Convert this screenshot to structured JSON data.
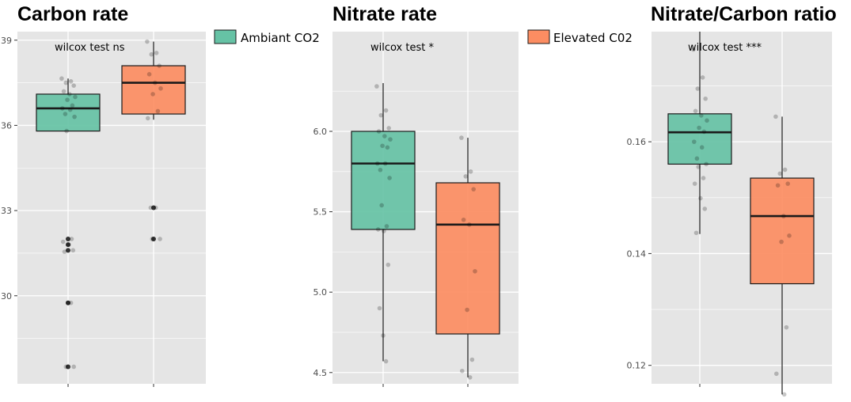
{
  "colors": {
    "ambient": "#66c2a5",
    "elevated": "#fc8d62",
    "panel_bg": "#e5e5e5",
    "grid": "#ffffff",
    "points": "#000000"
  },
  "legend": [
    {
      "label": "Ambiant CO2",
      "color": "#66c2a5"
    },
    {
      "label": "Elevated C02",
      "color": "#fc8d62"
    }
  ],
  "chart_data": [
    {
      "type": "box",
      "title": "Carbon rate",
      "annotation": "wilcox test ns",
      "ylim": [
        26.9,
        39.3
      ],
      "yticks": [
        30,
        33,
        36,
        39
      ],
      "ytick_labels": [
        "30",
        "33",
        "36",
        "39"
      ],
      "series": [
        {
          "name": "Ambiant CO2",
          "q1": 35.8,
          "median": 36.6,
          "q3": 37.1,
          "whisker_low": 35.8,
          "whisker_high": 37.65,
          "outliers": [
            32.0,
            31.8,
            31.6,
            29.75,
            27.5
          ],
          "points": [
            37.65,
            37.55,
            37.5,
            37.4,
            37.2,
            37.1,
            37.0,
            36.9,
            36.7,
            36.6,
            36.55,
            36.4,
            36.3,
            35.8,
            32.0,
            31.9,
            31.8,
            31.6,
            31.55,
            29.75,
            29.75,
            27.5,
            27.5
          ]
        },
        {
          "name": "Elevated C02",
          "q1": 36.4,
          "median": 37.5,
          "q3": 38.1,
          "whisker_low": 36.2,
          "whisker_high": 38.95,
          "outliers": [
            33.1,
            32.0
          ],
          "points": [
            38.95,
            38.55,
            38.5,
            38.1,
            37.8,
            37.5,
            37.3,
            37.1,
            36.5,
            36.25,
            33.1,
            33.1,
            32.0,
            32.0
          ]
        }
      ]
    },
    {
      "type": "box",
      "title": "Nitrate rate",
      "annotation": "wilcox test *",
      "ylim": [
        4.43,
        6.62
      ],
      "yticks": [
        4.5,
        5.0,
        5.5,
        6.0
      ],
      "ytick_labels": [
        "4.5",
        "5.0",
        "5.5",
        "6.0"
      ],
      "series": [
        {
          "name": "Ambiant CO2",
          "q1": 5.39,
          "median": 5.8,
          "q3": 6.0,
          "whisker_low": 4.57,
          "whisker_high": 6.3,
          "outliers": [],
          "points": [
            6.28,
            6.13,
            6.1,
            6.02,
            6.0,
            5.97,
            5.95,
            5.91,
            5.9,
            5.8,
            5.8,
            5.76,
            5.71,
            5.54,
            5.41,
            5.39,
            5.38,
            5.17,
            4.9,
            4.73,
            4.57
          ]
        },
        {
          "name": "Elevated C02",
          "q1": 4.74,
          "median": 5.42,
          "q3": 5.68,
          "whisker_low": 4.47,
          "whisker_high": 5.96,
          "outliers": [],
          "points": [
            5.96,
            5.75,
            5.72,
            5.64,
            5.45,
            5.42,
            5.13,
            4.89,
            4.58,
            4.51,
            4.47
          ]
        }
      ]
    },
    {
      "type": "box",
      "title": "Nitrate/Carbon ratio",
      "annotation": "wilcox test ***",
      "ylim": [
        0.1167,
        0.1797
      ],
      "yticks": [
        0.12,
        0.14,
        0.16
      ],
      "ytick_labels": [
        "0.12",
        "0.14",
        "0.16"
      ],
      "series": [
        {
          "name": "Ambiant CO2",
          "q1": 0.156,
          "median": 0.1617,
          "q3": 0.165,
          "whisker_low": 0.1435,
          "whisker_high": 0.1797,
          "outliers": [],
          "points": [
            0.1765,
            0.1715,
            0.1695,
            0.1677,
            0.1655,
            0.1647,
            0.1638,
            0.1625,
            0.1618,
            0.16,
            0.159,
            0.157,
            0.156,
            0.1555,
            0.1535,
            0.1525,
            0.1499,
            0.148,
            0.1437
          ]
        },
        {
          "name": "Elevated C02",
          "q1": 0.1346,
          "median": 0.1467,
          "q3": 0.1535,
          "whisker_low": 0.1148,
          "whisker_high": 0.1645,
          "outliers": [],
          "points": [
            0.1645,
            0.155,
            0.1543,
            0.1525,
            0.1522,
            0.1467,
            0.1432,
            0.1421,
            0.1268,
            0.1185,
            0.1148
          ]
        }
      ]
    }
  ]
}
